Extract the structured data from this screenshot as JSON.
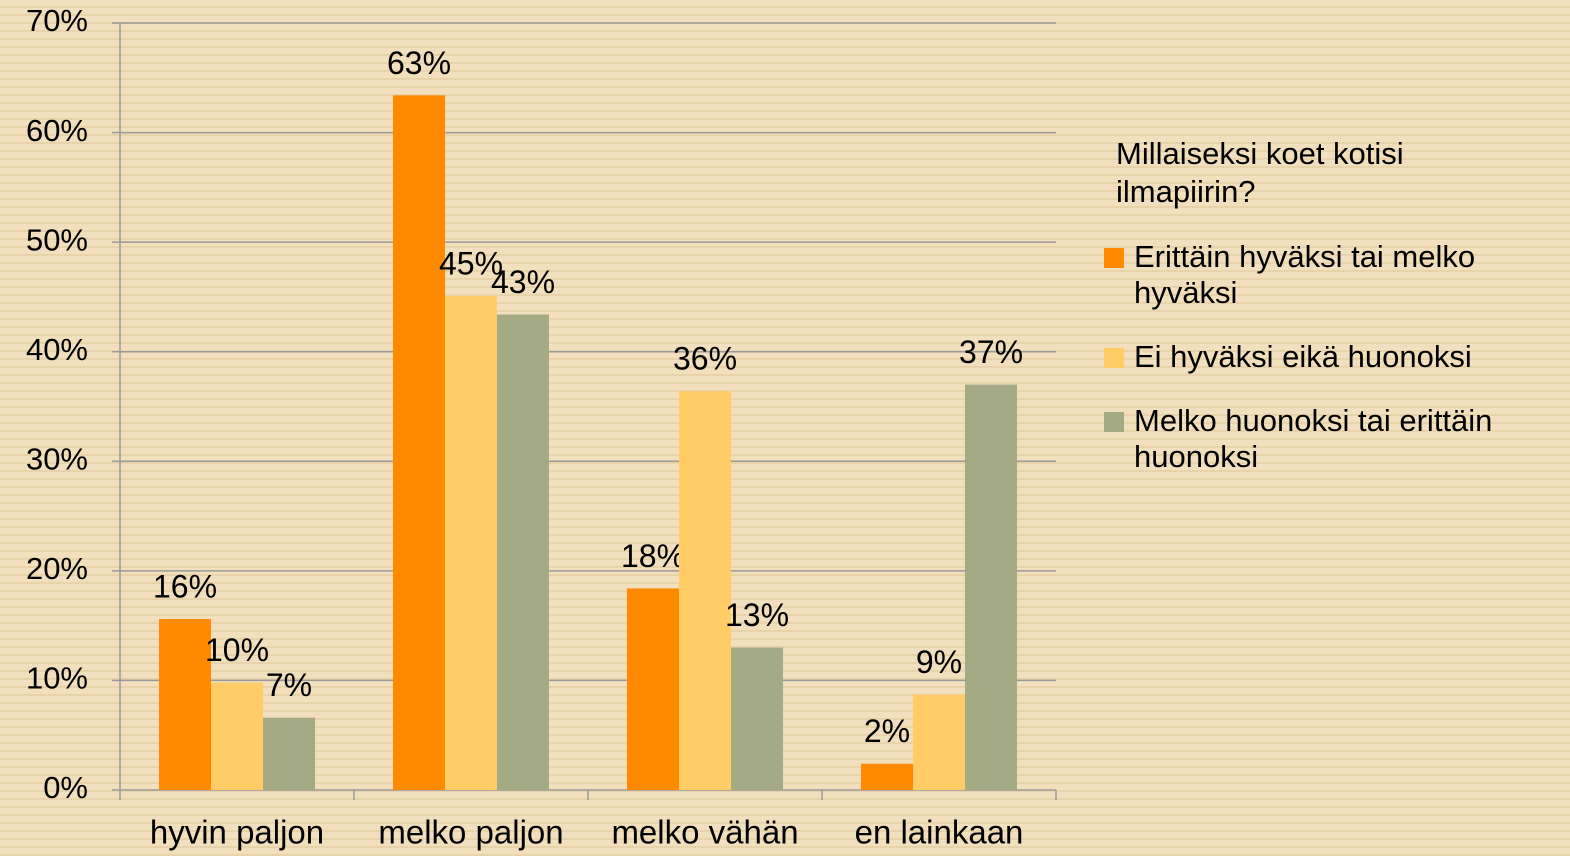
{
  "chart_data": {
    "type": "bar",
    "legend_title": "Millaiseksi koet kotisi ilmapiirin?",
    "categories": [
      "hyvin paljon",
      "melko paljon",
      "melko vähän",
      "en lainkaan"
    ],
    "series": [
      {
        "name": "Erittäin hyväksi tai melko hyväksi",
        "color": "#ff8a00",
        "values": [
          15.6,
          63.4,
          18.4,
          2.4
        ],
        "value_labels": [
          "16%",
          "63%",
          "18%",
          "2%"
        ]
      },
      {
        "name": "Ei hyväksi eikä huonoksi",
        "color": "#ffcc66",
        "values": [
          9.8,
          45.1,
          36.4,
          8.7
        ],
        "value_labels": [
          "10%",
          "45%",
          "36%",
          "9%"
        ]
      },
      {
        "name": "Melko huonoksi tai erittäin huonoksi",
        "color": "#a4aa84",
        "values": [
          6.6,
          43.4,
          13.0,
          37.0
        ],
        "value_labels": [
          "7%",
          "43%",
          "13%",
          "37%"
        ]
      }
    ],
    "ylim": [
      0,
      70
    ],
    "yticks": [
      {
        "value": 0,
        "label": "0%"
      },
      {
        "value": 10,
        "label": "10%"
      },
      {
        "value": 20,
        "label": "20%"
      },
      {
        "value": 30,
        "label": "30%"
      },
      {
        "value": 40,
        "label": "40%"
      },
      {
        "value": 50,
        "label": "50%"
      },
      {
        "value": 60,
        "label": "60%"
      },
      {
        "value": 70,
        "label": "70%"
      }
    ],
    "grid": true,
    "legend": "right"
  }
}
